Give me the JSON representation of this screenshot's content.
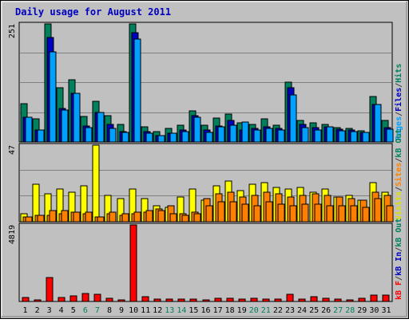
{
  "chart_data": {
    "type": "bar",
    "title": "Daily usage for August 2011",
    "categories": [
      "1",
      "2",
      "3",
      "4",
      "5",
      "6",
      "7",
      "8",
      "9",
      "10",
      "11",
      "12",
      "13",
      "14",
      "15",
      "16",
      "17",
      "18",
      "19",
      "20",
      "21",
      "22",
      "23",
      "24",
      "25",
      "26",
      "27",
      "28",
      "29",
      "30",
      "31"
    ],
    "weekend_days": [
      "6",
      "7",
      "13",
      "14",
      "20",
      "21",
      "27",
      "28"
    ],
    "panels": [
      {
        "id": "hits-files-pages",
        "ymax": 251,
        "ylabel_max": "251",
        "legend": [
          {
            "text": "Pages",
            "color": "#00a0ff"
          },
          {
            "text": "/",
            "color": "#404040"
          },
          {
            "text": "Files",
            "color": "#0000c0"
          },
          {
            "text": "/",
            "color": "#404040"
          },
          {
            "text": "Hits",
            "color": "#00805c"
          }
        ],
        "series": [
          {
            "name": "Hits",
            "color": "#00805c",
            "values": [
              82,
              49,
              251,
              116,
              132,
              54,
              86,
              56,
              38,
              251,
              32,
              22,
              29,
              35,
              66,
              36,
              51,
              60,
              40,
              38,
              50,
              35,
              128,
              46,
              40,
              38,
              30,
              28,
              24,
              96,
              45
            ]
          },
          {
            "name": "Files",
            "color": "#0000c0",
            "values": [
              52,
              26,
              222,
              72,
              104,
              34,
              62,
              38,
              22,
              232,
              22,
              13,
              19,
              25,
              56,
              26,
              34,
              46,
              26,
              29,
              32,
              28,
              115,
              37,
              30,
              33,
              27,
              25,
              20,
              80,
              31
            ]
          },
          {
            "name": "Pages",
            "color": "#00a0ff",
            "values": [
              52,
              26,
              192,
              67,
              104,
              31,
              62,
              29,
              20,
              218,
              18,
              13,
              18,
              22,
              52,
              20,
              32,
              36,
              42,
              26,
              29,
              26,
              100,
              30,
              26,
              33,
              24,
              22,
              21,
              80,
              27
            ]
          }
        ]
      },
      {
        "id": "visits-sites-kbout",
        "ymax": 47,
        "ylabel_max": "47",
        "legend": [
          {
            "text": "Visits",
            "color": "#e0e000"
          },
          {
            "text": "/",
            "color": "#404040"
          },
          {
            "text": "Sites",
            "color": "#ff8000"
          },
          {
            "text": "/",
            "color": "#404040"
          },
          {
            "text": "kB Out",
            "color": "#00805c"
          }
        ],
        "series": [
          {
            "name": "Visits",
            "color": "#ffff00",
            "values": [
              5,
              23,
              17,
              20,
              18,
              22,
              47,
              16,
              14,
              20,
              14,
              10,
              9,
              15,
              20,
              13,
              22,
              25,
              19,
              23,
              24,
              21,
              20,
              21,
              18,
              20,
              15,
              16,
              13,
              24,
              18
            ]
          },
          {
            "name": "Sites",
            "color": "#ff8000",
            "values": [
              3,
              4,
              4,
              5,
              6,
              5,
              3,
              5,
              4,
              5,
              6,
              8,
              10,
              5,
              6,
              14,
              17,
              18,
              15,
              16,
              18,
              17,
              15,
              16,
              17,
              16,
              15,
              14,
              13,
              18,
              16
            ]
          },
          {
            "name": "kB Out",
            "color": "#ff8000",
            "values": [
              3,
              4,
              7,
              7,
              6,
              6,
              3,
              6,
              5,
              6,
              7,
              7,
              5,
              4,
              5,
              10,
              12,
              12,
              11,
              10,
              12,
              11,
              10,
              11,
              11,
              10,
              10,
              10,
              9,
              14,
              10
            ]
          }
        ]
      },
      {
        "id": "kbin-kbf",
        "ymax": 4819,
        "ylabel_max": "4819",
        "legend": [
          {
            "text": "kB F",
            "color": "#ff0000"
          },
          {
            "text": "/",
            "color": "#404040"
          },
          {
            "text": "kB In",
            "color": "#0000c0"
          },
          {
            "text": "/",
            "color": "#404040"
          },
          {
            "text": "kB Out",
            "color": "#00805c"
          }
        ],
        "series": [
          {
            "name": "kB F",
            "color": "#ff0000",
            "values": [
              260,
              120,
              1500,
              240,
              330,
              520,
              430,
              190,
              80,
              4819,
              320,
              140,
              150,
              140,
              170,
              100,
              210,
              210,
              150,
              190,
              150,
              130,
              450,
              130,
              300,
              180,
              130,
              120,
              210,
              400,
              420
            ]
          }
        ]
      }
    ]
  }
}
